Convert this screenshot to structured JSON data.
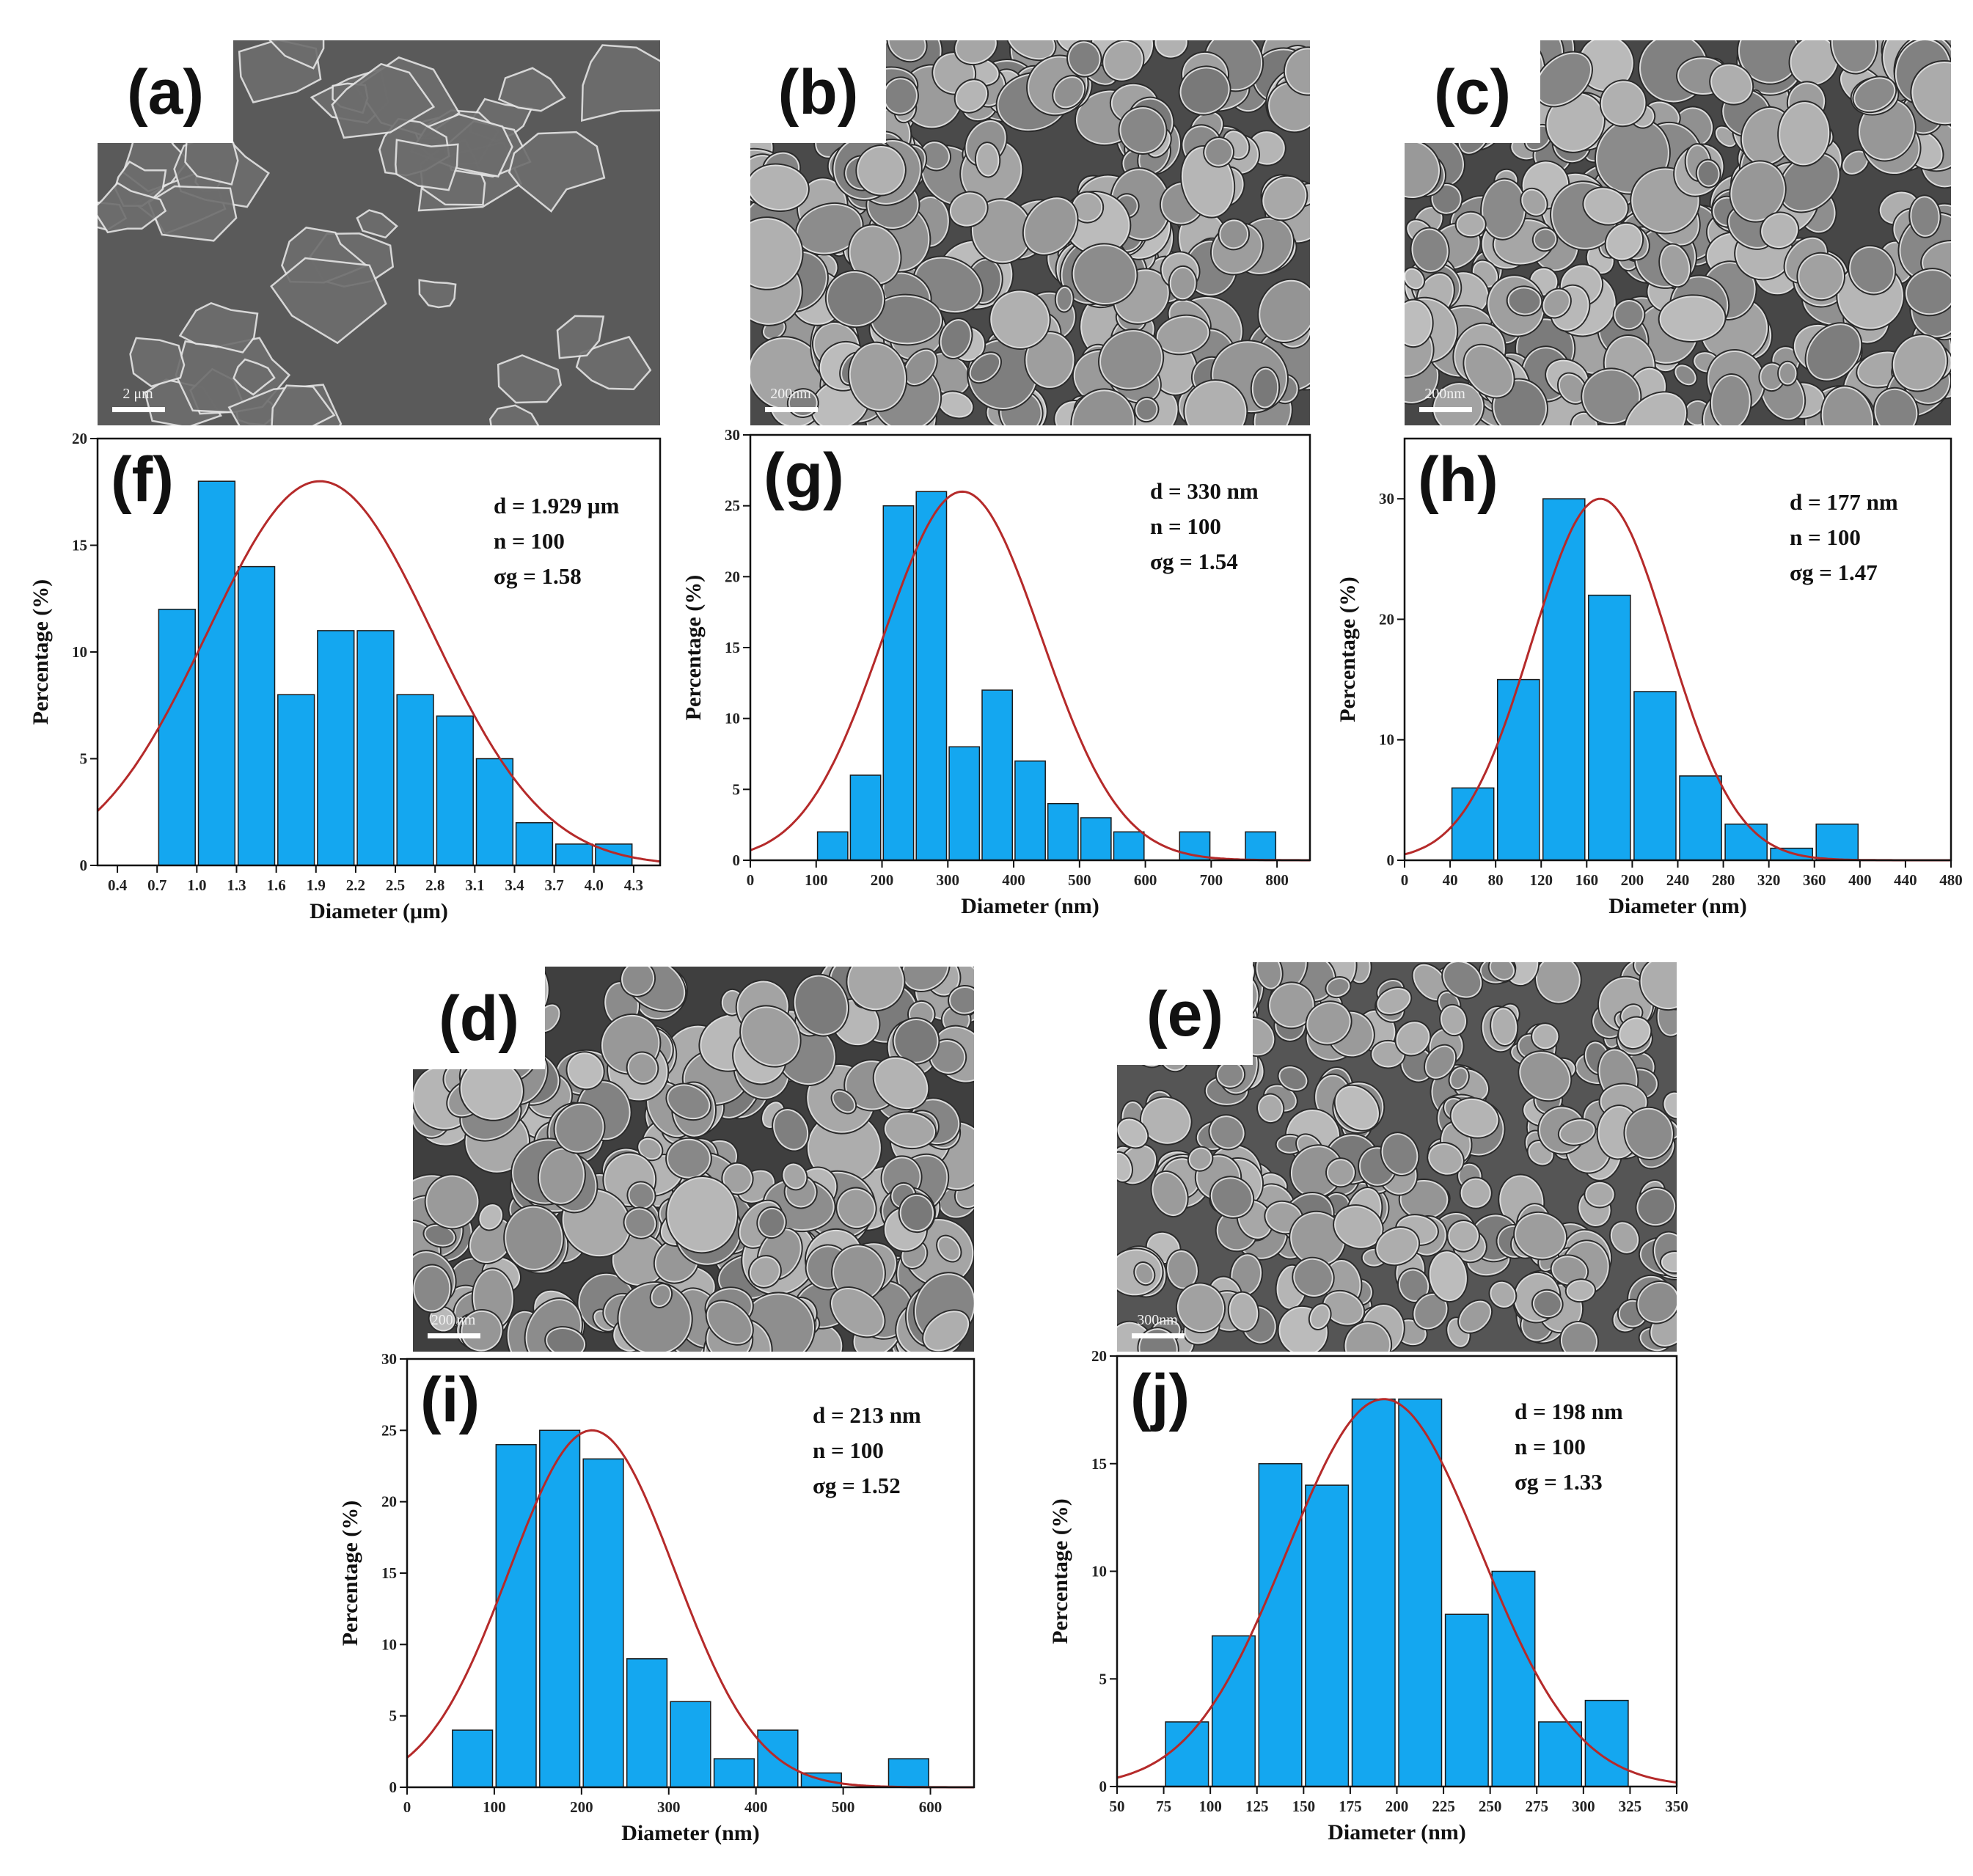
{
  "sem_panels": [
    {
      "id": "a",
      "label": "(a)",
      "scale_text": "2 μm",
      "bg": "#5a5a5a",
      "style": "flakes"
    },
    {
      "id": "b",
      "label": "(b)",
      "scale_text": "200nm",
      "bg": "#4a4a4a",
      "style": "grains"
    },
    {
      "id": "c",
      "label": "(c)",
      "scale_text": "200nm",
      "bg": "#474747",
      "style": "grains"
    },
    {
      "id": "d",
      "label": "(d)",
      "scale_text": "200 nm",
      "bg": "#3f3f3f",
      "style": "grains"
    },
    {
      "id": "e",
      "label": "(e)",
      "scale_text": "300nm",
      "bg": "#555555",
      "style": "grains"
    }
  ],
  "colors": {
    "bar_fill": "#14a7f0",
    "bar_stroke": "#1a1a1a",
    "curve": "#b52a2a"
  },
  "chart_data": [
    {
      "id": "f",
      "type": "bar",
      "label": "(f)",
      "xlabel": "Diameter (μm)",
      "ylabel": "Percentage (%)",
      "xlim": [
        0.25,
        4.5
      ],
      "ylim": [
        0,
        20
      ],
      "xticks": [
        0.4,
        0.7,
        1.0,
        1.3,
        1.6,
        1.9,
        2.2,
        2.5,
        2.8,
        3.1,
        3.4,
        3.7,
        4.0,
        4.3
      ],
      "xtick_labels": [
        "0.4",
        "0.7",
        "1.0",
        "1.3",
        "1.6",
        "1.9",
        "2.2",
        "2.5",
        "2.8",
        "3.1",
        "3.4",
        "3.7",
        "4.0",
        "4.3"
      ],
      "yticks": [
        0,
        5,
        10,
        15,
        20
      ],
      "bin_width": 0.3,
      "bins": [
        0.85,
        1.15,
        1.45,
        1.75,
        2.05,
        2.35,
        2.65,
        2.95,
        3.25,
        3.55,
        3.85,
        4.15
      ],
      "values": [
        12,
        18,
        14,
        8,
        11,
        11,
        8,
        7,
        5,
        2,
        1,
        1
      ],
      "fit": {
        "mean": 1.93,
        "sigma": 0.85,
        "peak": 18
      },
      "stats": [
        "d = 1.929 μm",
        "n = 100",
        "σg = 1.58"
      ]
    },
    {
      "id": "g",
      "type": "bar",
      "label": "(g)",
      "xlabel": "Diameter (nm)",
      "ylabel": "Percentage (%)",
      "xlim": [
        0,
        850
      ],
      "ylim": [
        0,
        30
      ],
      "xticks": [
        0,
        100,
        200,
        300,
        400,
        500,
        600,
        700,
        800
      ],
      "xtick_labels": [
        "0",
        "100",
        "200",
        "300",
        "400",
        "500",
        "600",
        "700",
        "800"
      ],
      "yticks": [
        0,
        5,
        10,
        15,
        20,
        25,
        30
      ],
      "bin_width": 50,
      "bins": [
        125,
        175,
        225,
        275,
        325,
        375,
        425,
        475,
        525,
        575,
        675,
        775
      ],
      "values": [
        2,
        6,
        25,
        26,
        8,
        12,
        7,
        4,
        3,
        2,
        2,
        2
      ],
      "fit": {
        "mean": 322,
        "sigma": 120,
        "peak": 26
      },
      "stats": [
        "d = 330 nm",
        "n = 100",
        "σg = 1.54"
      ]
    },
    {
      "id": "h",
      "type": "bar",
      "label": "(h)",
      "xlabel": "Diameter (nm)",
      "ylabel": "Percentage (%)",
      "xlim": [
        0,
        480
      ],
      "ylim": [
        0,
        35
      ],
      "xticks": [
        0,
        40,
        80,
        120,
        160,
        200,
        240,
        280,
        320,
        360,
        400,
        440,
        480
      ],
      "xtick_labels": [
        "0",
        "40",
        "80",
        "120",
        "160",
        "200",
        "240",
        "280",
        "320",
        "360",
        "400",
        "440",
        "480"
      ],
      "yticks": [
        0,
        10,
        20,
        30
      ],
      "bin_width": 40,
      "bins": [
        60,
        100,
        140,
        180,
        220,
        260,
        300,
        340,
        380
      ],
      "values": [
        6,
        15,
        30,
        22,
        14,
        7,
        3,
        1,
        3
      ],
      "fit": {
        "mean": 172,
        "sigma": 60,
        "peak": 30
      },
      "stats": [
        "d = 177 nm",
        "n = 100",
        "σg = 1.47"
      ]
    },
    {
      "id": "i",
      "type": "bar",
      "label": "(i)",
      "xlabel": "Diameter (nm)",
      "ylabel": "Percentage (%)",
      "xlim": [
        0,
        650
      ],
      "ylim": [
        0,
        30
      ],
      "xticks": [
        0,
        100,
        200,
        300,
        400,
        500,
        600
      ],
      "xtick_labels": [
        "0",
        "100",
        "200",
        "300",
        "400",
        "500",
        "600"
      ],
      "yticks": [
        0,
        5,
        10,
        15,
        20,
        25,
        30
      ],
      "bin_width": 50,
      "bins": [
        75,
        125,
        175,
        225,
        275,
        325,
        375,
        425,
        475,
        575
      ],
      "values": [
        4,
        24,
        25,
        23,
        9,
        6,
        2,
        4,
        1,
        2
      ],
      "fit": {
        "mean": 212,
        "sigma": 95,
        "peak": 25
      },
      "stats": [
        "d = 213 nm",
        "n = 100",
        "σg = 1.52"
      ]
    },
    {
      "id": "j",
      "type": "bar",
      "label": "(j)",
      "xlabel": "Diameter (nm)",
      "ylabel": "Percentage (%)",
      "xlim": [
        50,
        350
      ],
      "ylim": [
        0,
        20
      ],
      "xticks": [
        50,
        75,
        100,
        125,
        150,
        175,
        200,
        225,
        250,
        275,
        300,
        325,
        350
      ],
      "xtick_labels": [
        "50",
        "75",
        "100",
        "125",
        "150",
        "175",
        "200",
        "225",
        "250",
        "275",
        "300",
        "325",
        "350"
      ],
      "yticks": [
        0,
        5,
        10,
        15,
        20
      ],
      "bin_width": 25,
      "bins": [
        87.5,
        112.5,
        137.5,
        162.5,
        187.5,
        212.5,
        237.5,
        262.5,
        287.5,
        312.5
      ],
      "values": [
        3,
        7,
        15,
        14,
        18,
        18,
        8,
        10,
        3,
        4
      ],
      "fit": {
        "mean": 193,
        "sigma": 52,
        "peak": 18
      },
      "stats": [
        "d = 198 nm",
        "n = 100",
        "σg = 1.33"
      ]
    }
  ]
}
